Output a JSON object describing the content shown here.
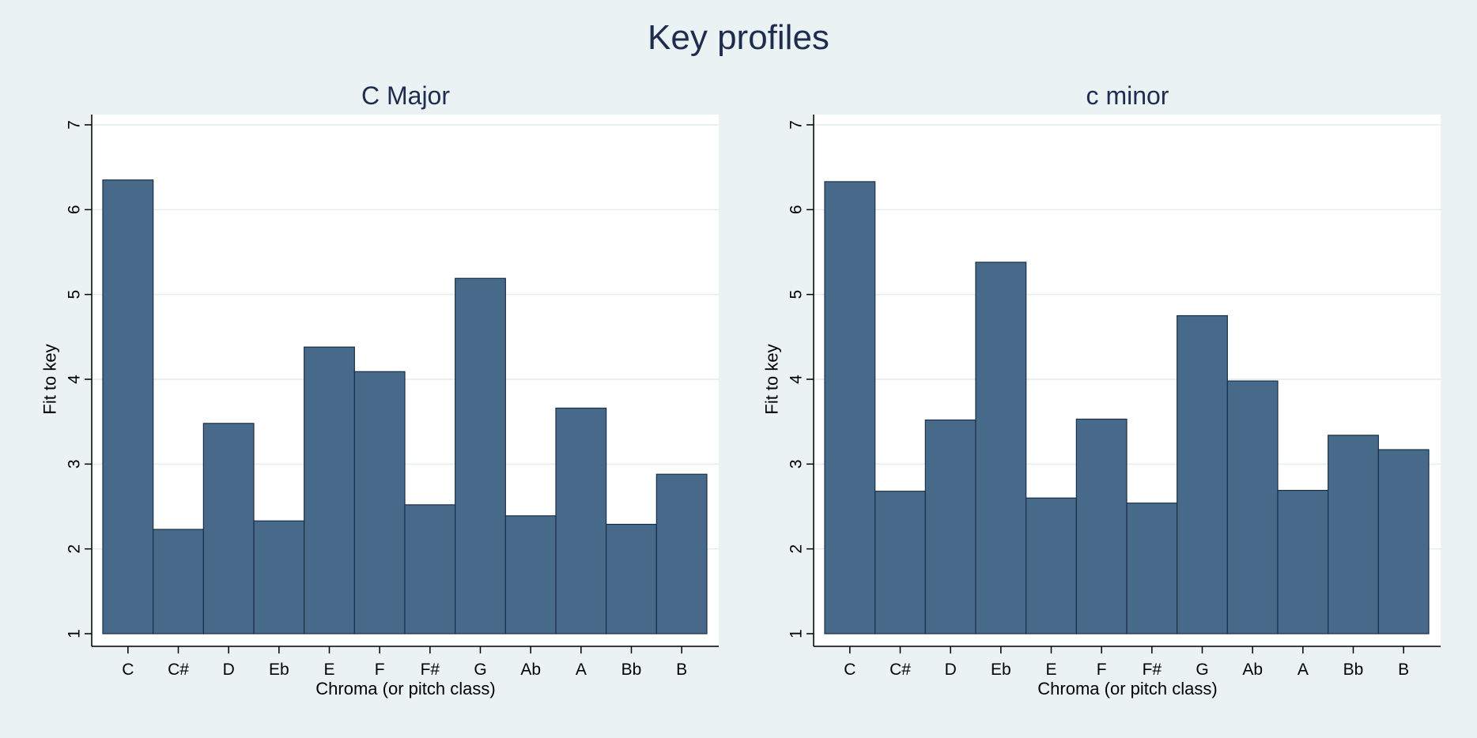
{
  "title": "Key profiles",
  "colors": {
    "background": "#eaf2f3",
    "plot_background": "#ffffff",
    "bar_fill": "#476a8a",
    "bar_stroke": "#1a3047",
    "gridline": "#e4ecee",
    "title": "#1e2d4f"
  },
  "chart_data": [
    {
      "type": "bar",
      "title": "C Major",
      "xlabel": "Chroma (or pitch class)",
      "ylabel": "Fit to key",
      "categories": [
        "C",
        "C#",
        "D",
        "Eb",
        "E",
        "F",
        "F#",
        "G",
        "Ab",
        "A",
        "Bb",
        "B"
      ],
      "values": [
        6.35,
        2.23,
        3.48,
        2.33,
        4.38,
        4.09,
        2.52,
        5.19,
        2.39,
        3.66,
        2.29,
        2.88
      ],
      "ylim": [
        1,
        7
      ],
      "yticks": [
        1,
        2,
        3,
        4,
        5,
        6,
        7
      ],
      "grid": true,
      "base": 1
    },
    {
      "type": "bar",
      "title": "c minor",
      "xlabel": "Chroma (or pitch class)",
      "ylabel": "Fit to key",
      "categories": [
        "C",
        "C#",
        "D",
        "Eb",
        "E",
        "F",
        "F#",
        "G",
        "Ab",
        "A",
        "Bb",
        "B"
      ],
      "values": [
        6.33,
        2.68,
        3.52,
        5.38,
        2.6,
        3.53,
        2.54,
        4.75,
        3.98,
        2.69,
        3.34,
        3.17
      ],
      "ylim": [
        1,
        7
      ],
      "yticks": [
        1,
        2,
        3,
        4,
        5,
        6,
        7
      ],
      "grid": true,
      "base": 1
    }
  ]
}
